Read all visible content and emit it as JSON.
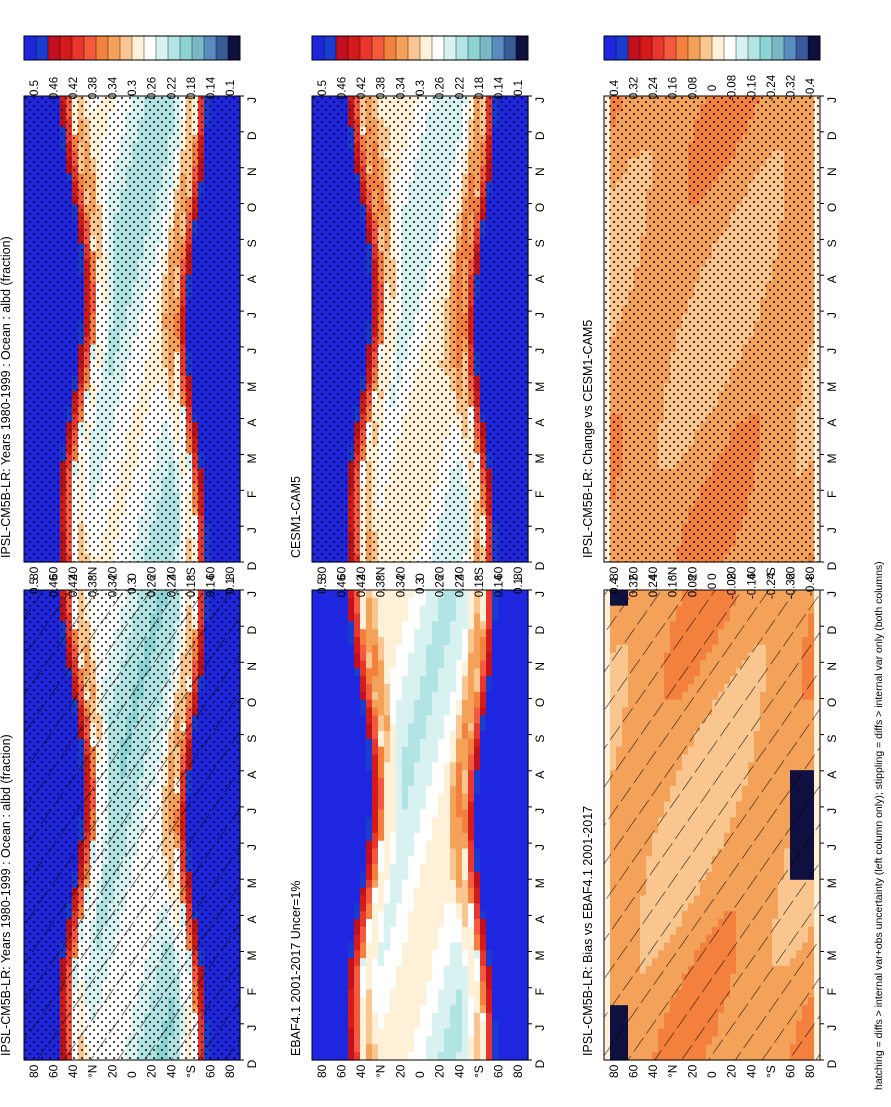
{
  "figure": {
    "footnote": "hatching = diffs > internal var+obs uncertainty (left column only); stippling = diffs > internal var only (both columns)"
  },
  "palettes": {
    "abs": [
      "#1f26e0",
      "#1a3bd0",
      "#c01020",
      "#d41a1a",
      "#e8362c",
      "#f45a3e",
      "#f4803e",
      "#f4a25a",
      "#f8c68e",
      "#fff0d8",
      "#ffffff",
      "#d8f2f2",
      "#b2e4e4",
      "#8cd4d4",
      "#7ab8c8",
      "#5a8cc0",
      "#3a5a9a",
      "#101040"
    ],
    "diff": [
      "#1f26e0",
      "#1a3bd0",
      "#c01020",
      "#d41a1a",
      "#e8362c",
      "#f45a3e",
      "#f4803e",
      "#f4a25a",
      "#f8c68e",
      "#fff0d8",
      "#ffffff",
      "#d8f2f2",
      "#b2e4e4",
      "#8cd4d4",
      "#7ab8c8",
      "#5a8cc0",
      "#3a5a9a",
      "#101040"
    ]
  },
  "axes": {
    "months": [
      "D",
      "J",
      "F",
      "M",
      "A",
      "M",
      "J",
      "J",
      "A",
      "S",
      "O",
      "N",
      "D",
      "J"
    ],
    "lat_ticks": [
      "80",
      "60",
      "40",
      "°N",
      "20",
      "0",
      "20",
      "40",
      "°S",
      "60",
      "80"
    ]
  },
  "chart_data": [
    {
      "type": "heatmap",
      "title": "IPSL-CM5B-LR: Years 1980-1999 : Ocean : albd (fraction)",
      "colorbar": [
        "0.5",
        "0.46",
        "0.42",
        "0.38",
        "0.34",
        "0.3",
        "0.26",
        "0.22",
        "0.18",
        "0.14",
        "0.1"
      ],
      "overlay": "hatching+stippling",
      "pattern": "absolute"
    },
    {
      "type": "heatmap",
      "title": "IPSL-CM5B-LR: Years 1980-1999 : Ocean : albd (fraction)",
      "colorbar": [
        "0.5",
        "0.46",
        "0.42",
        "0.38",
        "0.34",
        "0.3",
        "0.26",
        "0.22",
        "0.18",
        "0.14",
        "0.1"
      ],
      "overlay": "stippling",
      "pattern": "absolute"
    },
    {
      "type": "heatmap",
      "title": "EBAF4.1 2001-2017 Uncer=1%",
      "colorbar": [
        "0.5",
        "0.46",
        "0.42",
        "0.38",
        "0.34",
        "0.3",
        "0.26",
        "0.22",
        "0.18",
        "0.14",
        "0.1"
      ],
      "overlay": "none",
      "pattern": "absolute"
    },
    {
      "type": "heatmap",
      "title": "CESM1-CAM5",
      "colorbar": [
        "0.5",
        "0.46",
        "0.42",
        "0.38",
        "0.34",
        "0.3",
        "0.26",
        "0.22",
        "0.18",
        "0.14",
        "0.1"
      ],
      "overlay": "stippling",
      "pattern": "absolute"
    },
    {
      "type": "heatmap",
      "title": "IPSL-CM5B-LR: Bias vs EBAF4.1 2001-2017",
      "colorbar": [
        "0.4",
        "0.32",
        "0.24",
        "0.16",
        "0.08",
        "0",
        "-0.08",
        "-0.16",
        "-0.24",
        "-0.32",
        "-0.4"
      ],
      "overlay": "hatching",
      "pattern": "difference"
    },
    {
      "type": "heatmap",
      "title": "IPSL-CM5B-LR: Change vs CESM1-CAM5",
      "colorbar": [
        "0.4",
        "0.32",
        "0.24",
        "0.16",
        "0.08",
        "0",
        "-0.08",
        "-0.16",
        "-0.24",
        "-0.32",
        "-0.4"
      ],
      "overlay": "stippling",
      "pattern": "difference"
    }
  ]
}
